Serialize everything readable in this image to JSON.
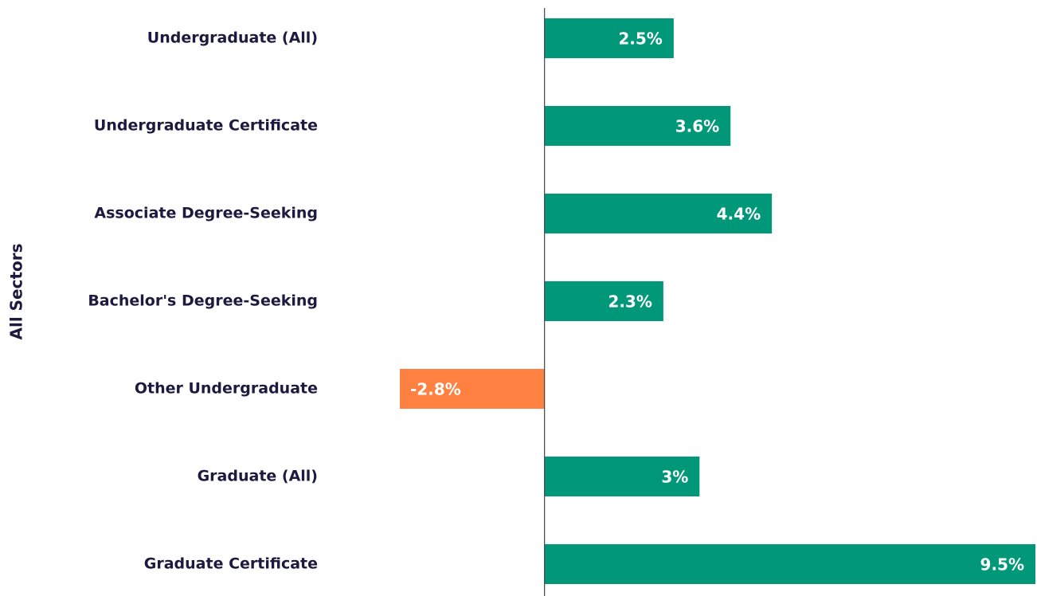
{
  "chart_data": {
    "type": "bar",
    "orientation": "horizontal",
    "y_label": "All Sectors",
    "categories": [
      "Undergraduate (All)",
      "Undergraduate Certificate",
      "Associate Degree-Seeking",
      "Bachelor's Degree-Seeking",
      "Other Undergraduate",
      "Graduate (All)",
      "Graduate Certificate"
    ],
    "values": [
      2.5,
      3.6,
      4.4,
      2.3,
      -2.8,
      3,
      9.5
    ],
    "value_labels": [
      "2.5%",
      "3.6%",
      "4.4%",
      "2.3%",
      "-2.8%",
      "3%",
      "9.5%"
    ],
    "colors": [
      "#009879",
      "#009879",
      "#009879",
      "#009879",
      "#ff8142",
      "#009879",
      "#009879"
    ]
  }
}
